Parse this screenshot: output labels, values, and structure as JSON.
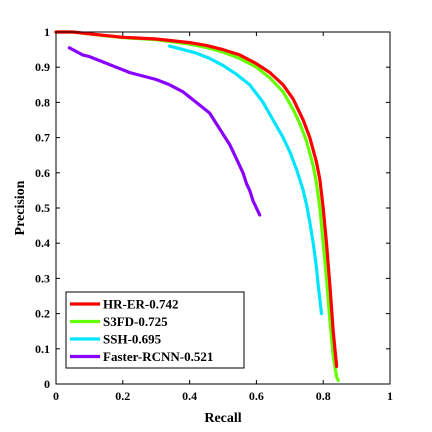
{
  "chart_data": {
    "type": "line",
    "title": "",
    "xlabel": "Recall",
    "ylabel": "Precision",
    "xlim": [
      0,
      1
    ],
    "ylim": [
      0,
      1
    ],
    "xticks": [
      0,
      0.2,
      0.4,
      0.6,
      0.8,
      1
    ],
    "xtick_labels": [
      "0",
      "0.2",
      "0.4",
      "0.6",
      "0.8",
      "1"
    ],
    "yticks": [
      0,
      0.1,
      0.2,
      0.3,
      0.4,
      0.5,
      0.6,
      0.7,
      0.8,
      0.9,
      1
    ],
    "ytick_labels": [
      "0",
      "0.1",
      "0.2",
      "0.3",
      "0.4",
      "0.5",
      "0.6",
      "0.7",
      "0.8",
      "0.9",
      "1"
    ],
    "grid": false,
    "box": true,
    "legend_position": "bottom-left",
    "series": [
      {
        "name": "HR-ER-0.742",
        "color": "#ff0000",
        "x": [
          0.0,
          0.05,
          0.1,
          0.2,
          0.3,
          0.4,
          0.45,
          0.5,
          0.55,
          0.6,
          0.64,
          0.68,
          0.71,
          0.74,
          0.76,
          0.78,
          0.79,
          0.8,
          0.81,
          0.82,
          0.83,
          0.84
        ],
        "y": [
          1.0,
          1.0,
          0.995,
          0.985,
          0.98,
          0.97,
          0.962,
          0.95,
          0.935,
          0.91,
          0.885,
          0.85,
          0.81,
          0.75,
          0.7,
          0.63,
          0.58,
          0.5,
          0.4,
          0.28,
          0.15,
          0.05
        ]
      },
      {
        "name": "S3FD-0.725",
        "color": "#66ff00",
        "x": [
          0.0,
          0.05,
          0.1,
          0.2,
          0.3,
          0.4,
          0.45,
          0.5,
          0.55,
          0.6,
          0.64,
          0.68,
          0.71,
          0.73,
          0.75,
          0.77,
          0.78,
          0.79,
          0.8,
          0.81,
          0.82,
          0.83,
          0.84,
          0.845
        ],
        "y": [
          1.0,
          1.0,
          0.994,
          0.984,
          0.978,
          0.966,
          0.956,
          0.943,
          0.925,
          0.9,
          0.87,
          0.83,
          0.78,
          0.74,
          0.69,
          0.62,
          0.57,
          0.5,
          0.4,
          0.3,
          0.18,
          0.08,
          0.02,
          0.01
        ]
      },
      {
        "name": "SSH-0.695",
        "color": "#00e5ff",
        "x": [
          0.34,
          0.38,
          0.42,
          0.46,
          0.5,
          0.54,
          0.58,
          0.62,
          0.65,
          0.68,
          0.7,
          0.72,
          0.74,
          0.75,
          0.76,
          0.77,
          0.78,
          0.785,
          0.79,
          0.795
        ],
        "y": [
          0.96,
          0.95,
          0.94,
          0.925,
          0.905,
          0.88,
          0.85,
          0.8,
          0.75,
          0.7,
          0.66,
          0.61,
          0.55,
          0.51,
          0.46,
          0.4,
          0.33,
          0.28,
          0.24,
          0.2
        ]
      },
      {
        "name": "Faster-RCNN-0.521",
        "color": "#8a00ff",
        "x": [
          0.04,
          0.06,
          0.08,
          0.1,
          0.14,
          0.18,
          0.22,
          0.26,
          0.3,
          0.34,
          0.38,
          0.42,
          0.46,
          0.5,
          0.52,
          0.54,
          0.56,
          0.57,
          0.58,
          0.59,
          0.6,
          0.61
        ],
        "y": [
          0.955,
          0.945,
          0.935,
          0.93,
          0.915,
          0.9,
          0.885,
          0.875,
          0.865,
          0.85,
          0.83,
          0.8,
          0.77,
          0.71,
          0.68,
          0.64,
          0.6,
          0.57,
          0.55,
          0.52,
          0.5,
          0.48
        ]
      }
    ]
  }
}
